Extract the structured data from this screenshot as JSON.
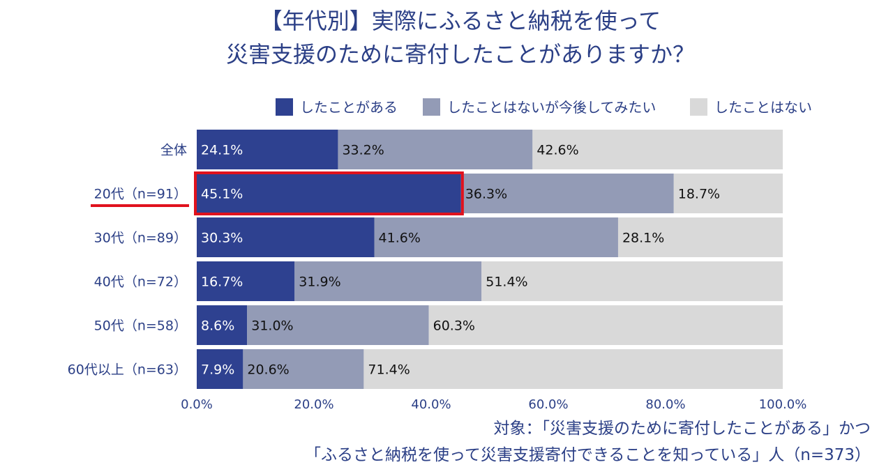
{
  "title": {
    "line1": "【年代別】実際にふるさと納税を使って",
    "line2": "災害支援のために寄付したことがありますか？"
  },
  "legend": [
    {
      "label": "したことがある"
    },
    {
      "label": "したことはないが今後してみたい"
    },
    {
      "label": "したことはない"
    }
  ],
  "colors": {
    "series1": "#2e4190",
    "series2": "#939bb6",
    "series3": "#d9d9d9",
    "text": "#2b3f86",
    "highlight": "#e0121d"
  },
  "note": {
    "line1": "対象：「災害支援のために寄付したことがある」かつ",
    "line2": "「ふるさと納税を使って災害支援寄付できることを知っている」人（n=373）"
  },
  "chart_data": {
    "type": "bar",
    "orientation": "horizontal",
    "stacked": true,
    "title": "【年代別】実際にふるさと納税を使って災害支援のために寄付したことがありますか？",
    "categories": [
      "全体",
      "20代（n=91）",
      "30代（n=89）",
      "40代（n=72）",
      "50代（n=58）",
      "60代以上（n=63）"
    ],
    "series": [
      {
        "name": "したことがある",
        "values": [
          24.1,
          45.1,
          30.3,
          16.7,
          8.6,
          7.9
        ]
      },
      {
        "name": "したことはないが今後してみたい",
        "values": [
          33.2,
          36.3,
          41.6,
          31.9,
          31.0,
          20.6
        ]
      },
      {
        "name": "したことはない",
        "values": [
          42.6,
          18.7,
          28.1,
          51.4,
          60.3,
          71.4
        ]
      }
    ],
    "value_labels": [
      [
        "24.1%",
        "45.1%",
        "30.3%",
        "16.7%",
        "8.6%",
        "7.9%"
      ],
      [
        "33.2%",
        "36.3%",
        "41.6%",
        "31.9%",
        "31.0%",
        "20.6%"
      ],
      [
        "42.6%",
        "18.7%",
        "28.1%",
        "51.4%",
        "60.3%",
        "71.4%"
      ]
    ],
    "xlim": [
      0,
      100
    ],
    "xticks": [
      0,
      20,
      40,
      60,
      80,
      100
    ],
    "xtick_labels": [
      "0.0%",
      "20.0%",
      "40.0%",
      "60.0%",
      "80.0%",
      "100.0%"
    ],
    "legend_position": "top-right",
    "highlight": {
      "category": "20代（n=91）",
      "series": "したことがある"
    }
  }
}
